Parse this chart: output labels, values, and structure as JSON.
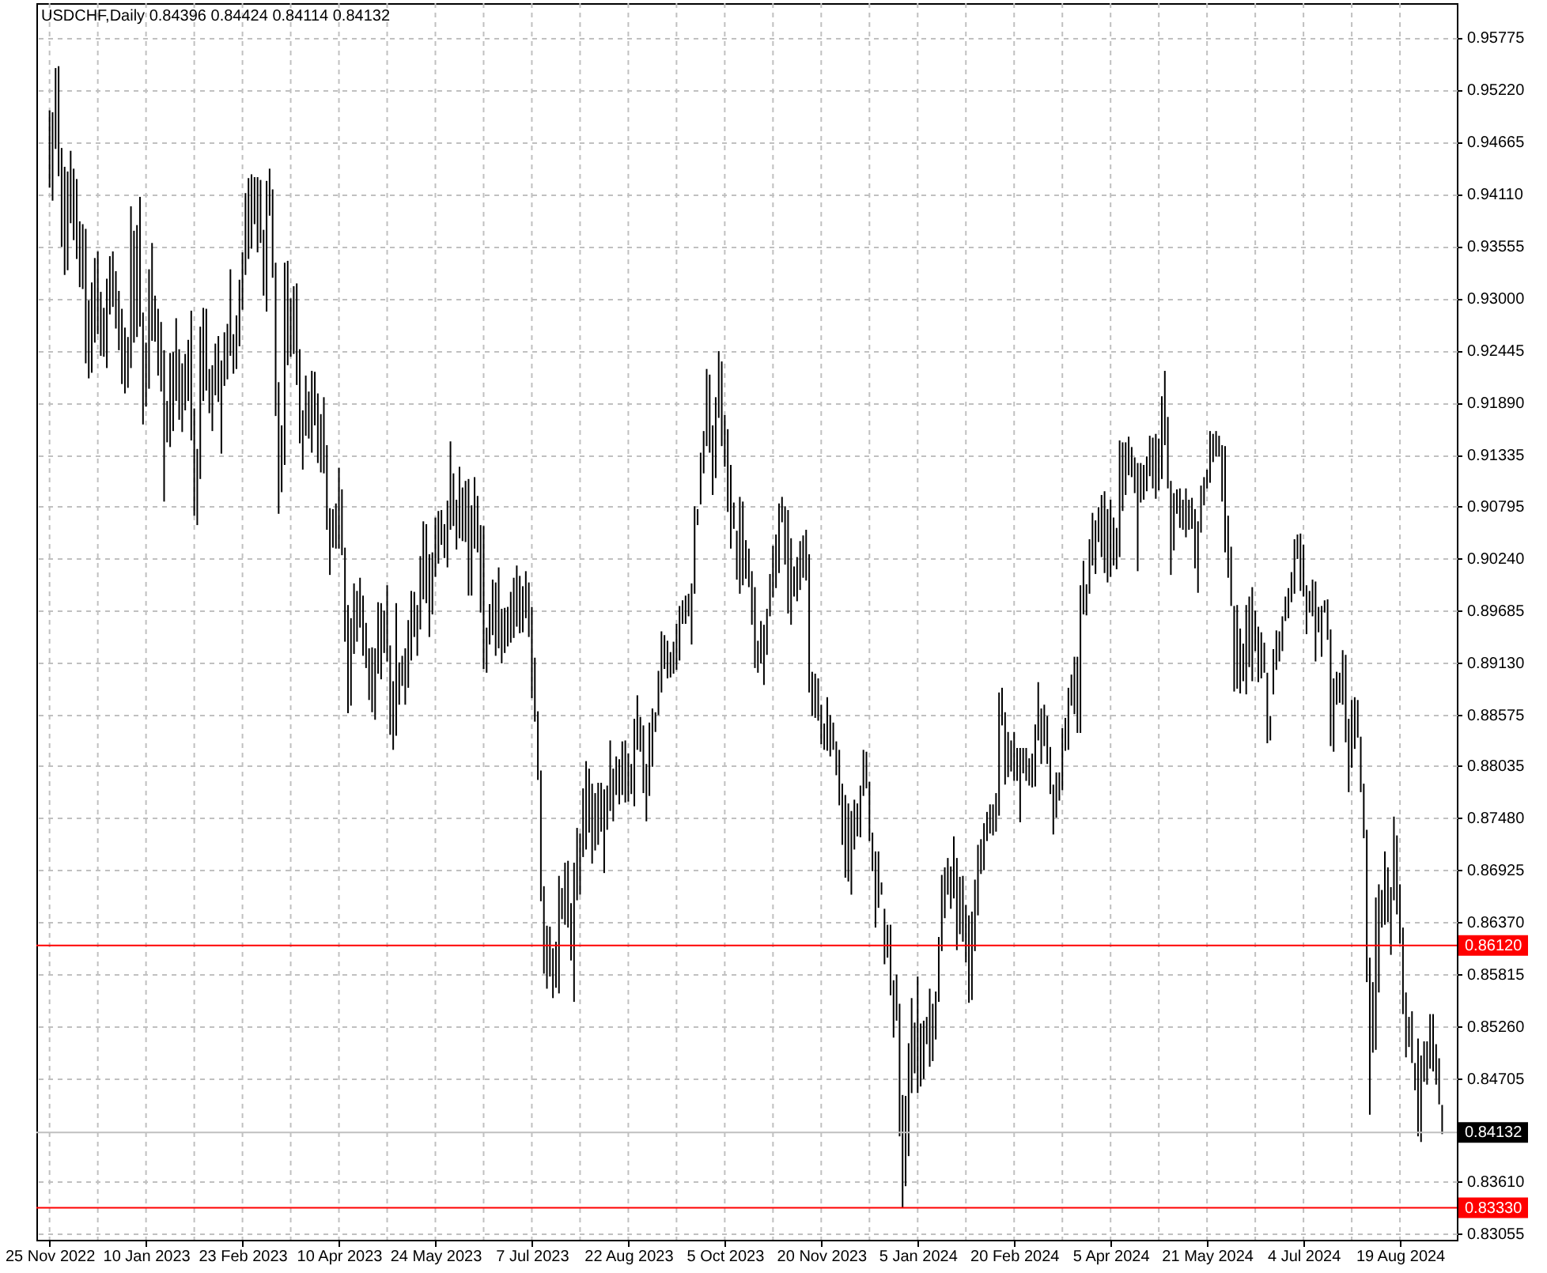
{
  "chart_data": {
    "type": "bar",
    "title": "USDCHF,Daily  0.84396 0.84424 0.84114 0.84132",
    "categories": [
      "25 Nov 2022",
      null,
      null,
      null,
      null,
      null,
      null,
      null,
      null,
      null,
      null,
      null,
      null,
      null,
      null,
      null,
      null,
      null,
      null,
      null,
      null,
      null,
      null,
      null,
      null,
      null,
      null,
      null,
      null,
      null,
      null,
      null,
      "10 Jan 2023",
      null,
      null,
      null,
      null,
      null,
      null,
      null,
      null,
      null,
      null,
      null,
      null,
      null,
      null,
      null,
      null,
      null,
      null,
      null,
      null,
      null,
      null,
      null,
      null,
      null,
      null,
      null,
      null,
      null,
      null,
      null,
      "23 Feb 2023",
      null,
      null,
      null,
      null,
      null,
      null,
      null,
      null,
      null,
      null,
      null,
      null,
      null,
      null,
      null,
      null,
      null,
      null,
      null,
      null,
      null,
      null,
      null,
      null,
      null,
      null,
      null,
      null,
      null,
      null,
      null,
      "10 Apr 2023",
      null,
      null,
      null,
      null,
      null,
      null,
      null,
      null,
      null,
      null,
      null,
      null,
      null,
      null,
      null,
      null,
      null,
      null,
      null,
      null,
      null,
      null,
      null,
      null,
      null,
      null,
      null,
      null,
      null,
      null,
      null,
      "24 May 2023",
      null,
      null,
      null,
      null,
      null,
      null,
      null,
      null,
      null,
      null,
      null,
      null,
      null,
      null,
      null,
      null,
      null,
      null,
      null,
      null,
      null,
      null,
      null,
      null,
      null,
      null,
      null,
      null,
      null,
      null,
      null,
      "7 Jul 2023",
      null,
      null,
      null,
      null,
      null,
      null,
      null,
      null,
      null,
      null,
      null,
      null,
      null,
      null,
      null,
      null,
      null,
      null,
      null,
      null,
      null,
      null,
      null,
      null,
      null,
      null,
      null,
      null,
      null,
      null,
      null,
      "22 Aug 2023",
      null,
      null,
      null,
      null,
      null,
      null,
      null,
      null,
      null,
      null,
      null,
      null,
      null,
      null,
      null,
      null,
      null,
      null,
      null,
      null,
      null,
      null,
      null,
      null,
      null,
      null,
      null,
      null,
      null,
      null,
      null,
      "5 Oct 2023",
      null,
      null,
      null,
      null,
      null,
      null,
      null,
      null,
      null,
      null,
      null,
      null,
      null,
      null,
      null,
      null,
      null,
      null,
      null,
      null,
      null,
      null,
      null,
      null,
      null,
      null,
      null,
      null,
      null,
      null,
      null,
      "20 Nov 2023",
      null,
      null,
      null,
      null,
      null,
      null,
      null,
      null,
      null,
      null,
      null,
      null,
      null,
      null,
      null,
      null,
      null,
      null,
      null,
      null,
      null,
      null,
      null,
      null,
      null,
      null,
      null,
      null,
      null,
      null,
      null,
      "5 Jan 2024",
      null,
      null,
      null,
      null,
      null,
      null,
      null,
      null,
      null,
      null,
      null,
      null,
      null,
      null,
      null,
      null,
      null,
      null,
      null,
      null,
      null,
      null,
      null,
      null,
      null,
      null,
      null,
      null,
      null,
      null,
      null,
      "20 Feb 2024",
      null,
      null,
      null,
      null,
      null,
      null,
      null,
      null,
      null,
      null,
      null,
      null,
      null,
      null,
      null,
      null,
      null,
      null,
      null,
      null,
      null,
      null,
      null,
      null,
      null,
      null,
      null,
      null,
      null,
      null,
      null,
      "5 Apr 2024",
      null,
      null,
      null,
      null,
      null,
      null,
      null,
      null,
      null,
      null,
      null,
      null,
      null,
      null,
      null,
      null,
      null,
      null,
      null,
      null,
      null,
      null,
      null,
      null,
      null,
      null,
      null,
      null,
      null,
      null,
      null,
      "21 May 2024",
      null,
      null,
      null,
      null,
      null,
      null,
      null,
      null,
      null,
      null,
      null,
      null,
      null,
      null,
      null,
      null,
      null,
      null,
      null,
      null,
      null,
      null,
      null,
      null,
      null,
      null,
      null,
      null,
      null,
      null,
      null,
      "4 Jul 2024",
      null,
      null,
      null,
      null,
      null,
      null,
      null,
      null,
      null,
      null,
      null,
      null,
      null,
      null,
      null,
      null,
      null,
      null,
      null,
      null,
      null,
      null,
      null,
      null,
      null,
      null,
      null,
      null,
      null,
      null,
      null,
      "19 Aug 2024",
      null,
      null,
      null,
      null,
      null,
      null,
      null,
      null,
      null,
      null,
      null,
      null,
      null,
      null
    ],
    "base": [
      0.9418,
      0.9404,
      0.9459,
      0.943,
      0.9355,
      0.9325,
      0.933,
      0.938,
      0.9362,
      0.9342,
      0.9312,
      0.931,
      0.9231,
      0.9215,
      0.9221,
      0.9253,
      0.9262,
      0.9239,
      0.9238,
      0.9226,
      0.9283,
      0.9291,
      0.9268,
      0.9245,
      0.9209,
      0.9199,
      0.9205,
      0.9226,
      0.9253,
      0.9259,
      0.927,
      0.9166,
      0.9185,
      0.9204,
      0.9255,
      0.9254,
      0.9218,
      0.9201,
      0.9084,
      0.9147,
      0.9142,
      0.9159,
      0.9191,
      0.9171,
      0.9158,
      0.9181,
      0.9191,
      0.9149,
      0.9069,
      0.9059,
      0.9108,
      0.9191,
      0.9202,
      0.9178,
      0.9159,
      0.9197,
      0.919,
      0.9135,
      0.9207,
      0.9214,
      0.9239,
      0.922,
      0.9225,
      0.9249,
      0.9288,
      0.9325,
      0.9342,
      0.9353,
      0.9379,
      0.9349,
      0.9359,
      0.9303,
      0.9286,
      0.9388,
      0.9322,
      0.9175,
      0.9071,
      0.9094,
      0.9123,
      0.9229,
      0.9238,
      0.9241,
      0.9208,
      0.9146,
      0.9118,
      0.9154,
      0.9151,
      0.9136,
      0.9165,
      0.9125,
      0.9115,
      0.9114,
      0.9054,
      0.9006,
      0.9035,
      0.9034,
      0.9034,
      0.9027,
      0.8935,
      0.8859,
      0.8867,
      0.8922,
      0.8935,
      0.895,
      0.892,
      0.8907,
      0.8873,
      0.886,
      0.8852,
      0.8901,
      0.8895,
      0.8923,
      0.8914,
      0.8836,
      0.882,
      0.8835,
      0.8868,
      0.8888,
      0.8868,
      0.8886,
      0.8915,
      0.894,
      0.892,
      0.8948,
      0.898,
      0.8976,
      0.894,
      0.8964,
      0.9004,
      0.9018,
      0.9038,
      0.9024,
      0.9014,
      0.9054,
      0.9058,
      0.9033,
      0.9045,
      0.9042,
      0.9041,
      0.8984,
      0.8984,
      0.9034,
      0.903,
      0.8966,
      0.8906,
      0.8902,
      0.8932,
      0.8942,
      0.892,
      0.8928,
      0.8912,
      0.8923,
      0.893,
      0.8934,
      0.8939,
      0.8951,
      0.8944,
      0.8945,
      0.896,
      0.894,
      0.8875,
      0.885,
      0.8788,
      0.8659,
      0.8582,
      0.8566,
      0.8579,
      0.8556,
      0.8567,
      0.8561,
      0.864,
      0.8634,
      0.8631,
      0.8596,
      0.8552,
      0.866,
      0.8666,
      0.8706,
      0.8714,
      0.8732,
      0.8699,
      0.8713,
      0.8719,
      0.8733,
      0.8689,
      0.8735,
      0.8755,
      0.8744,
      0.8772,
      0.8762,
      0.8772,
      0.8764,
      0.8765,
      0.8773,
      0.876,
      0.882,
      0.8818,
      0.8774,
      0.8744,
      0.8771,
      0.8802,
      0.8839,
      0.8857,
      0.8881,
      0.8906,
      0.8896,
      0.8897,
      0.8901,
      0.8905,
      0.8915,
      0.8954,
      0.8954,
      0.8962,
      0.8932,
      0.8986,
      0.9059,
      0.9081,
      0.9114,
      0.9143,
      0.9136,
      0.9091,
      0.9109,
      0.9173,
      0.9143,
      0.9121,
      0.9073,
      0.9034,
      0.9055,
      0.9001,
      0.8986,
      0.8995,
      0.9002,
      0.8993,
      0.8953,
      0.8907,
      0.8902,
      0.8912,
      0.8889,
      0.8921,
      0.8962,
      0.8982,
      0.8992,
      0.9008,
      0.9062,
      0.9017,
      0.8965,
      0.8953,
      0.8983,
      0.8978,
      0.899,
      0.9003,
      0.9,
      0.8881,
      0.8856,
      0.8854,
      0.8851,
      0.8826,
      0.882,
      0.8819,
      0.8813,
      0.882,
      0.8793,
      0.8761,
      0.8719,
      0.8684,
      0.868,
      0.8666,
      0.8714,
      0.8728,
      0.8727,
      0.8771,
      0.8779,
      0.8723,
      0.8691,
      0.8631,
      0.8652,
      0.8666,
      0.8592,
      0.8599,
      0.8559,
      0.8514,
      0.8532,
      0.8409,
      0.8333,
      0.8356,
      0.8388,
      0.8455,
      0.8476,
      0.8455,
      0.8462,
      0.847,
      0.8507,
      0.8483,
      0.8489,
      0.8512,
      0.8552,
      0.8606,
      0.8641,
      0.8666,
      0.8651,
      0.8662,
      0.8607,
      0.8624,
      0.8616,
      0.8594,
      0.8551,
      0.8554,
      0.8606,
      0.8644,
      0.8688,
      0.8692,
      0.8723,
      0.8731,
      0.8729,
      0.8733,
      0.875,
      0.8846,
      0.8783,
      0.8791,
      0.8797,
      0.8787,
      0.8787,
      0.8743,
      0.8795,
      0.8787,
      0.8782,
      0.878,
      0.8781,
      0.883,
      0.8805,
      0.8824,
      0.8805,
      0.8773,
      0.873,
      0.8748,
      0.8766,
      0.8777,
      0.8819,
      0.882,
      0.8867,
      0.8858,
      0.8838,
      0.8838,
      0.8964,
      0.8963,
      0.8986,
      0.9016,
      0.9007,
      0.9041,
      0.9025,
      0.9008,
      0.8998,
      0.9004,
      0.9016,
      0.9012,
      0.9025,
      0.9074,
      0.9091,
      0.9112,
      0.911,
      0.9093,
      0.901,
      0.9083,
      0.9086,
      0.9095,
      0.9111,
      0.9098,
      0.9087,
      0.9096,
      0.9108,
      0.9144,
      0.9098,
      0.9006,
      0.9032,
      0.9071,
      0.9056,
      0.9054,
      0.9046,
      0.9054,
      0.9055,
      0.9013,
      0.8987,
      0.9051,
      0.908,
      0.9098,
      0.9104,
      0.9126,
      0.9132,
      0.9132,
      0.9084,
      0.903,
      0.9003,
      0.8973,
      0.8882,
      0.8885,
      0.888,
      0.8893,
      0.8879,
      0.8908,
      0.8893,
      0.8925,
      0.8892,
      0.8896,
      0.8902,
      0.8827,
      0.883,
      0.8879,
      0.8905,
      0.8914,
      0.8925,
      0.8957,
      0.896,
      0.8977,
      0.8986,
      0.9023,
      0.8989,
      0.8983,
      0.8943,
      0.8966,
      0.8962,
      0.8914,
      0.8945,
      0.8919,
      0.8966,
      0.8937,
      0.8824,
      0.8818,
      0.8868,
      0.887,
      0.8868,
      0.8828,
      0.8775,
      0.8801,
      0.8821,
      0.8833,
      0.8775,
      0.8726,
      0.8573,
      0.8432,
      0.8498,
      0.8501,
      0.8562,
      0.8631,
      0.8634,
      0.8637,
      0.8602,
      0.866,
      0.8645,
      0.8614,
      0.8539,
      0.8493,
      0.8504,
      0.8487,
      0.8458,
      0.8409,
      0.8403,
      0.8467,
      0.8464,
      0.8481,
      0.8478,
      0.8464,
      0.8443,
      0.84114
    ],
    "values": [
      0.0082,
      0.0094,
      0.0086,
      0.0117,
      0.0105,
      0.0115,
      0.0105,
      0.0077,
      0.0076,
      0.0085,
      0.007,
      0.0069,
      0.0143,
      0.0083,
      0.0096,
      0.009,
      0.0088,
      0.0068,
      0.0052,
      0.0095,
      0.0062,
      0.0059,
      0.0061,
      0.0063,
      0.008,
      0.007,
      0.0054,
      0.0172,
      0.0119,
      0.0119,
      0.0138,
      0.0119,
      0.0068,
      0.0127,
      0.0104,
      0.0049,
      0.0071,
      0.0074,
      0.0161,
      0.0044,
      0.01,
      0.0084,
      0.0088,
      0.0075,
      0.0073,
      0.006,
      0.0065,
      0.0138,
      0.0114,
      0.0081,
      0.0162,
      0.0099,
      0.0087,
      0.0047,
      0.007,
      0.0055,
      0.007,
      0.0099,
      0.0057,
      0.0059,
      0.0092,
      0.0042,
      0.0057,
      0.0071,
      0.0061,
      0.0087,
      0.0086,
      0.0079,
      0.005,
      0.008,
      0.0067,
      0.007,
      0.0139,
      0.005,
      0.0094,
      0.0163,
      0.014,
      0.0071,
      0.0215,
      0.0111,
      0.0062,
      0.0072,
      0.0108,
      0.01,
      0.0063,
      0.0064,
      0.005,
      0.0087,
      0.0057,
      0.0074,
      0.0062,
      0.0081,
      0.009,
      0.0071,
      0.0041,
      0.0048,
      0.0086,
      0.007,
      0.01,
      0.0115,
      0.0093,
      0.0075,
      0.0054,
      0.0053,
      0.0064,
      0.0048,
      0.0055,
      0.0069,
      0.0076,
      0.0076,
      0.0081,
      0.0045,
      0.0081,
      0.0095,
      0.0073,
      0.0141,
      0.0045,
      0.0032,
      0.006,
      0.0072,
      0.0074,
      0.0048,
      0.0054,
      0.0078,
      0.0083,
      0.0084,
      0.0088,
      0.0066,
      0.0063,
      0.0056,
      0.0037,
      0.0036,
      0.0071,
      0.0094,
      0.0056,
      0.0053,
      0.0076,
      0.0057,
      0.0065,
      0.0124,
      0.0096,
      0.0076,
      0.006,
      0.0093,
      0.0152,
      0.0048,
      0.0043,
      0.0059,
      0.0078,
      0.0086,
      0.0058,
      0.0048,
      0.0042,
      0.0054,
      0.0064,
      0.0065,
      0.0061,
      0.0049,
      0.005,
      0.0058,
      0.0097,
      0.0068,
      0.0073,
      0.0139,
      0.0093,
      0.0067,
      0.0053,
      0.0053,
      0.0049,
      0.0125,
      0.0033,
      0.0066,
      0.0071,
      0.0061,
      0.0148,
      0.0077,
      0.0065,
      0.0073,
      0.0094,
      0.0068,
      0.0085,
      0.0061,
      0.0066,
      0.0052,
      0.0089,
      0.0047,
      0.0075,
      0.0056,
      0.0041,
      0.0048,
      0.0057,
      0.0066,
      0.0051,
      0.0032,
      0.0093,
      0.0058,
      0.0037,
      0.0072,
      0.0061,
      0.0078,
      0.0062,
      0.0021,
      0.0047,
      0.0065,
      0.0036,
      0.004,
      0.0027,
      0.0034,
      0.0049,
      0.0058,
      0.0025,
      0.003,
      0.0024,
      0.0065,
      0.0093,
      0.0017,
      0.0055,
      0.0045,
      0.0082,
      0.0083,
      0.0074,
      0.0086,
      0.0071,
      0.009,
      0.0055,
      0.0088,
      0.0089,
      0.0028,
      0.0052,
      0.0103,
      0.0089,
      0.0041,
      0.0041,
      0.0057,
      0.0086,
      0.0034,
      0.0045,
      0.0064,
      0.0049,
      0.0045,
      0.0055,
      0.0057,
      0.0074,
      0.0027,
      0.0062,
      0.011,
      0.0092,
      0.0032,
      0.0047,
      0.0052,
      0.0045,
      0.0054,
      0.0147,
      0.0047,
      0.0047,
      0.0045,
      0.0042,
      0.0028,
      0.0057,
      0.0044,
      0.0029,
      0.0036,
      0.0059,
      0.0065,
      0.0088,
      0.0083,
      0.0089,
      0.0053,
      0.0035,
      0.0055,
      0.0049,
      0.0039,
      0.0063,
      0.0041,
      0.0081,
      0.006,
      0.0013,
      0.0059,
      0.0035,
      0.0075,
      0.0061,
      0.0049,
      0.0141,
      0.012,
      0.0096,
      0.012,
      0.0101,
      0.0054,
      0.0124,
      0.0067,
      0.0062,
      0.0029,
      0.0083,
      0.0061,
      0.0051,
      0.0069,
      0.0081,
      0.0054,
      0.0039,
      0.0045,
      0.0066,
      0.0098,
      0.0061,
      0.007,
      0.0061,
      0.0093,
      0.0094,
      0.0076,
      0.0075,
      0.0037,
      0.005,
      0.0031,
      0.0031,
      0.0033,
      0.0041,
      0.0131,
      0.004,
      0.0077,
      0.0048,
      0.0033,
      0.0052,
      0.0035,
      0.0079,
      0.0027,
      0.0035,
      0.0029,
      0.0036,
      0.0066,
      0.0062,
      0.0059,
      0.0044,
      0.0051,
      0.005,
      0.0053,
      0.0048,
      0.003,
      0.0066,
      0.0035,
      0.0066,
      0.0033,
      0.0061,
      0.0081,
      0.0157,
      0.0057,
      0.0033,
      0.0058,
      0.0056,
      0.0057,
      0.0037,
      0.0066,
      0.0087,
      0.0078,
      0.0082,
      0.0051,
      0.0044,
      0.0124,
      0.0073,
      0.0056,
      0.0041,
      0.0032,
      0.0038,
      0.0115,
      0.0042,
      0.0037,
      0.0037,
      0.0043,
      0.0054,
      0.0069,
      0.0055,
      0.0088,
      0.0079,
      0.0076,
      0.01,
      0.0061,
      0.0026,
      0.0042,
      0.0032,
      0.0052,
      0.0032,
      0.0033,
      0.0063,
      0.0076,
      0.005,
      0.003,
      0.002,
      0.0055,
      0.003,
      0.0027,
      0.0022,
      0.006,
      0.0113,
      0.0066,
      0.0063,
      0.0091,
      0.0089,
      0.0069,
      0.004,
      0.0095,
      0.0075,
      0.01,
      0.0043,
      0.0059,
      0.0049,
      0.0032,
      0.0075,
      0.0026,
      0.0048,
      0.0042,
      0.0032,
      0.0037,
      0.0026,
      0.0032,
      0.0032,
      0.0058,
      0.0026,
      0.0061,
      0.0055,
      0.0052,
      0.0023,
      0.0039,
      0.0085,
      0.0027,
      0.0054,
      0.0013,
      0.0043,
      0.0124,
      0.0078,
      0.0035,
      0.0032,
      0.0058,
      0.0093,
      0.0078,
      0.0072,
      0.0055,
      0.004,
      0.0059,
      0.0058,
      0.0162,
      0.0167,
      0.0075,
      0.0162,
      0.0115,
      0.004,
      0.0078,
      0.0058,
      0.0072,
      0.0089,
      0.0084,
      0.0063,
      0.0092,
      0.0069,
      0.0032,
      0.0055,
      0.0029,
      0.0104,
      0.0092,
      0.0043,
      0.0046,
      0.0058,
      0.0061,
      0.0043,
      0.0049,
      0.0031
    ],
    "color": "#000000",
    "ylim": [
      0.8299,
      0.9614
    ],
    "yticks": [
      0.95775,
      {
        "value": 0.9522,
        "label": "0.95220"
      },
      0.94665,
      {
        "value": 0.9411,
        "label": "0.94110"
      },
      0.93555,
      {
        "value": 0.93,
        "label": "0.93000"
      },
      0.92445,
      {
        "value": 0.9189,
        "label": "0.91890"
      },
      0.91335,
      0.90795,
      {
        "value": 0.9024,
        "label": "0.90240"
      },
      0.89685,
      {
        "value": 0.8913,
        "label": "0.89130"
      },
      0.88575,
      0.88035,
      {
        "value": 0.8748,
        "label": "0.87480"
      },
      0.86925,
      {
        "value": 0.8637,
        "label": "0.86370"
      },
      0.85815,
      {
        "value": 0.8526,
        "label": "0.85260"
      },
      0.84705,
      {
        "value": 0.8361,
        "label": "0.83610"
      },
      0.83055
    ],
    "grid": true,
    "ref_lines": [
      {
        "axis": "y",
        "value": 0.8612,
        "label": "0.86120",
        "color": "#ff0000"
      },
      {
        "axis": "y",
        "value": 0.8333,
        "label": "0.83330",
        "color": "#ff0000"
      },
      {
        "axis": "y",
        "value": 0.84132,
        "label": "0.84132",
        "color": "#c0c0c0"
      }
    ]
  }
}
